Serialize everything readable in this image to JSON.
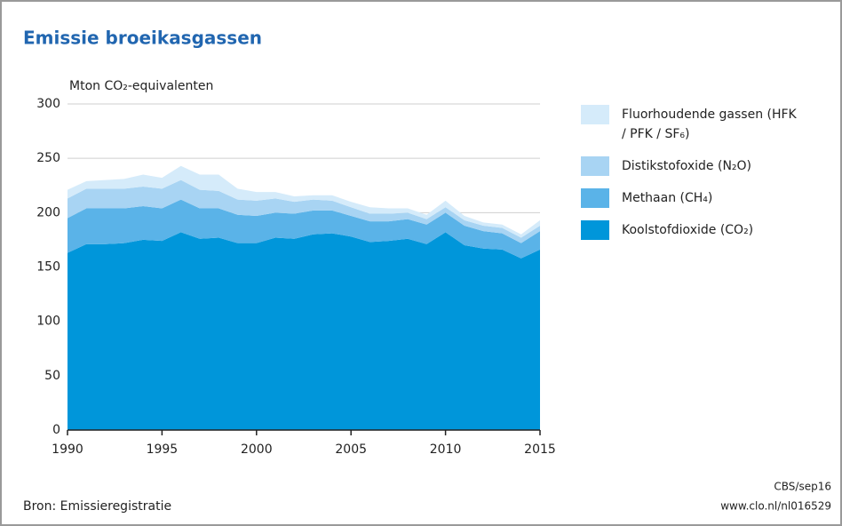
{
  "chart_data": {
    "type": "stacked-area",
    "title": "Emissie broeikasgassen",
    "y_label": "Mton CO₂-equivalenten",
    "x": [
      1990,
      1991,
      1992,
      1993,
      1994,
      1995,
      1996,
      1997,
      1998,
      1999,
      2000,
      2001,
      2002,
      2003,
      2004,
      2005,
      2006,
      2007,
      2008,
      2009,
      2010,
      2011,
      2012,
      2013,
      2014,
      2015
    ],
    "series": [
      {
        "name": "Koolstofdioxide (CO₂)",
        "color": "#0096da",
        "values": [
          163,
          171,
          171,
          172,
          175,
          174,
          182,
          176,
          177,
          172,
          172,
          177,
          176,
          180,
          181,
          178,
          173,
          174,
          176,
          171,
          182,
          170,
          167,
          166,
          158,
          166
        ]
      },
      {
        "name": "Methaan (CH₄)",
        "color": "#5ab3e8",
        "values": [
          32,
          33,
          33,
          32,
          31,
          30,
          30,
          28,
          27,
          26,
          25,
          23,
          23,
          22,
          21,
          19,
          19,
          18,
          18,
          18,
          18,
          18,
          16,
          15,
          14,
          17
        ]
      },
      {
        "name": "Distikstofoxide (N₂O)",
        "color": "#a8d4f3",
        "values": [
          18,
          18,
          18,
          18,
          18,
          18,
          18,
          17,
          16,
          14,
          14,
          13,
          11,
          10,
          9,
          8,
          7,
          7,
          6,
          5,
          5,
          5,
          5,
          5,
          5,
          5
        ]
      },
      {
        "name": "Fluorhoudende gassen (HFK / PFK / SF₆)",
        "color": "#d5ebfa",
        "values": [
          8,
          7,
          8,
          9,
          11,
          10,
          13,
          14,
          15,
          10,
          8,
          6,
          5,
          4,
          5,
          5,
          6,
          5,
          4,
          4,
          6,
          4,
          3,
          3,
          3,
          5
        ]
      }
    ],
    "xlim": [
      1990,
      2015
    ],
    "xticks": [
      1990,
      1995,
      2000,
      2005,
      2010,
      2015
    ],
    "ylim": [
      0,
      300
    ],
    "yticks": [
      0,
      50,
      100,
      150,
      200,
      250,
      300
    ],
    "grid": true,
    "source": "Bron: Emissieregistratie",
    "credit": "CBS/sep16",
    "url": "www.clo.nl/nl016529"
  }
}
